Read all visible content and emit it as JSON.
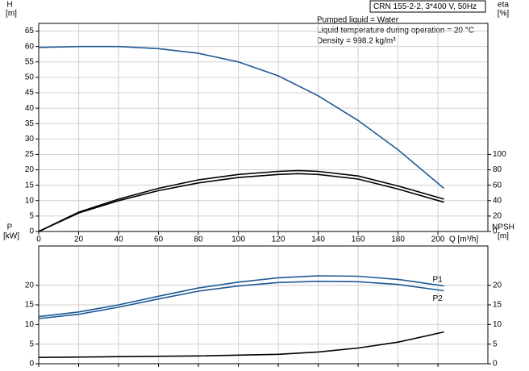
{
  "title": "CRN 155-2-2, 3*400 V, 50Hz",
  "annotations": [
    "Pumped liquid = Water",
    "Liquid temperature during operation = 20 °C",
    "Density = 998.2 kg/m³"
  ],
  "chart_data": [
    {
      "type": "line",
      "ylabel": "H",
      "yunit": "[m]",
      "y2label": "eta",
      "y2unit": "[%]",
      "xlabel": "Q [m³/h]",
      "xlim": [
        0,
        225
      ],
      "xticks": [
        0,
        20,
        40,
        60,
        80,
        100,
        120,
        140,
        160,
        180,
        200
      ],
      "ylim": [
        0,
        67.5
      ],
      "yticks": [
        0,
        5,
        10,
        15,
        20,
        25,
        30,
        35,
        40,
        45,
        50,
        55,
        60,
        65
      ],
      "y2lim": [
        0,
        270
      ],
      "y2ticks": [
        0,
        20,
        40,
        60,
        80,
        100
      ],
      "grid": true,
      "series": [
        {
          "color": "#1f5a96",
          "x": [
            0,
            20,
            40,
            60,
            80,
            100,
            120,
            140,
            160,
            180,
            203
          ],
          "values": [
            59.7,
            60,
            60,
            59.3,
            57.8,
            55,
            50.5,
            44,
            36,
            26.5,
            14
          ]
        },
        {
          "color": "#000000",
          "axis": "y2",
          "x": [
            0,
            20,
            40,
            60,
            80,
            100,
            120,
            130,
            140,
            160,
            180,
            203
          ],
          "values": [
            0,
            25,
            42,
            56,
            67,
            74,
            78,
            79,
            78,
            72,
            59,
            42
          ]
        },
        {
          "color": "#000000",
          "axis": "y2",
          "x": [
            0,
            20,
            40,
            60,
            80,
            100,
            120,
            130,
            140,
            160,
            180,
            203
          ],
          "values": [
            0,
            24,
            40,
            53,
            63,
            70,
            74,
            75,
            74,
            68,
            55,
            38
          ]
        }
      ]
    },
    {
      "type": "line",
      "ylabel": "P",
      "yunit": "[kW]",
      "y2label": "NPSH",
      "y2unit": "[m]",
      "xlim": [
        0,
        225
      ],
      "xticks": [
        0,
        20,
        40,
        60,
        80,
        100,
        120,
        140,
        160,
        180,
        200
      ],
      "ylim": [
        0,
        30
      ],
      "yticks": [
        0,
        5,
        10,
        15,
        20
      ],
      "y2lim": [
        0,
        30
      ],
      "y2ticks": [
        0,
        5,
        10,
        15,
        20
      ],
      "grid": true,
      "series": [
        {
          "name": "P1",
          "color": "#1f5a96",
          "x": [
            0,
            20,
            40,
            60,
            80,
            100,
            120,
            140,
            160,
            180,
            203
          ],
          "values": [
            12,
            13.2,
            15,
            17.2,
            19.3,
            20.8,
            21.9,
            22.4,
            22.3,
            21.5,
            19.8
          ]
        },
        {
          "name": "P2",
          "color": "#1f5a96",
          "x": [
            0,
            20,
            40,
            60,
            80,
            100,
            120,
            140,
            160,
            180,
            203
          ],
          "values": [
            11.5,
            12.6,
            14.4,
            16.5,
            18.5,
            19.8,
            20.7,
            21,
            20.9,
            20.2,
            18.6
          ]
        },
        {
          "color": "#000000",
          "axis": "y2",
          "x": [
            0,
            40,
            80,
            120,
            140,
            160,
            180,
            203
          ],
          "values": [
            1.6,
            1.8,
            2.0,
            2.4,
            3.0,
            4.0,
            5.5,
            8.1
          ]
        }
      ]
    }
  ]
}
